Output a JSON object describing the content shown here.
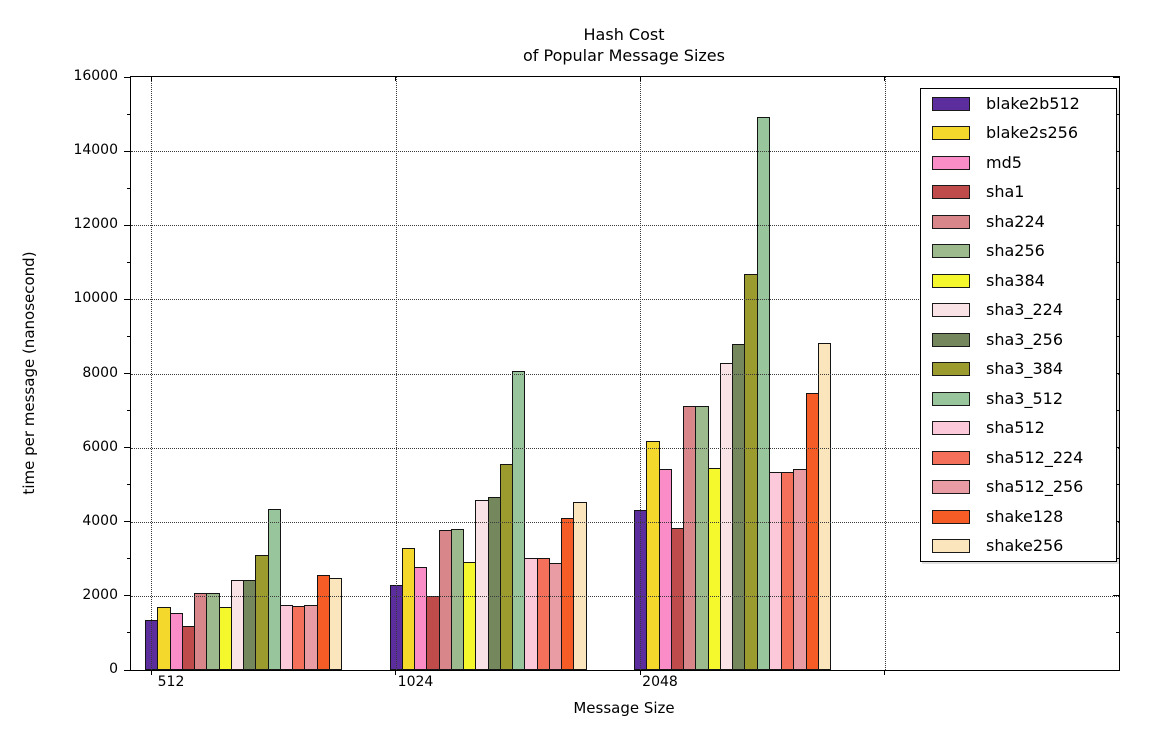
{
  "figure": {
    "title_lines": [
      "Hash Cost",
      "of Popular Message Sizes"
    ],
    "xlabel": "Message Size",
    "ylabel": "time per message (nanosecond)"
  },
  "chart_data": {
    "type": "bar",
    "title": "Hash Cost\nof Popular Message Sizes",
    "xlabel": "Message Size",
    "ylabel": "time per message (nanosecond)",
    "categories": [
      "512",
      "1024",
      "2048"
    ],
    "ylim": [
      0,
      16000
    ],
    "ytick_step": 2000,
    "ytick_labels": [
      "0",
      "2000",
      "4000",
      "6000",
      "8000",
      "10000",
      "12000",
      "14000",
      "16000"
    ],
    "grid": "dotted, both axes, drawn above bars",
    "legend_position": "upper right, inside axes",
    "series": [
      {
        "name": "blake2b512",
        "color": "#5c2d9c",
        "values": [
          1360,
          2290,
          4320
        ]
      },
      {
        "name": "blake2s256",
        "color": "#f5d82c",
        "values": [
          1700,
          3290,
          6180
        ]
      },
      {
        "name": "md5",
        "color": "#fa8cc8",
        "values": [
          1530,
          2770,
          5410
        ]
      },
      {
        "name": "sha1",
        "color": "#bf4b4b",
        "values": [
          1200,
          2010,
          3820
        ]
      },
      {
        "name": "sha224",
        "color": "#d88689",
        "values": [
          2080,
          3770,
          7130
        ]
      },
      {
        "name": "sha256",
        "color": "#9cba8e",
        "values": [
          2080,
          3810,
          7130
        ]
      },
      {
        "name": "sha384",
        "color": "#f5f82d",
        "values": [
          1710,
          2920,
          5440
        ]
      },
      {
        "name": "sha3_224",
        "color": "#fae3e7",
        "values": [
          2420,
          4600,
          8280
        ]
      },
      {
        "name": "sha3_256",
        "color": "#75875d",
        "values": [
          2420,
          4680,
          8800
        ]
      },
      {
        "name": "sha3_384",
        "color": "#9c9b2e",
        "values": [
          3090,
          5570,
          10680
        ]
      },
      {
        "name": "sha3_512",
        "color": "#98c59c",
        "values": [
          4350,
          8060,
          14930
        ]
      },
      {
        "name": "sha512",
        "color": "#fbc9da",
        "values": [
          1760,
          3010,
          5330
        ]
      },
      {
        "name": "sha512_224",
        "color": "#f5705b",
        "values": [
          1740,
          3010,
          5330
        ]
      },
      {
        "name": "sha512_256",
        "color": "#e99ca4",
        "values": [
          1750,
          2900,
          5430
        ]
      },
      {
        "name": "shake128",
        "color": "#f65c25",
        "values": [
          2570,
          4100,
          7470
        ]
      },
      {
        "name": "shake256",
        "color": "#fae5bd",
        "values": [
          2490,
          4530,
          8820
        ]
      }
    ]
  }
}
